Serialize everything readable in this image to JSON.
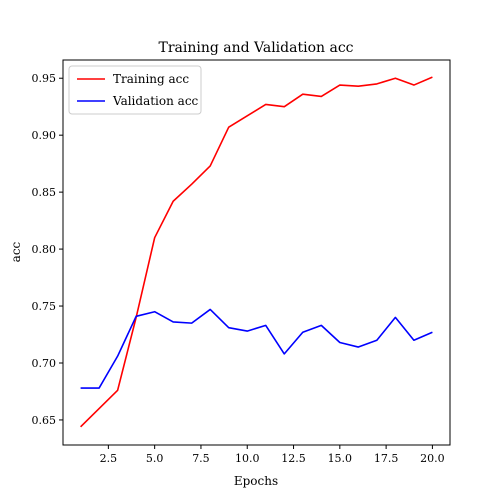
{
  "chart_data": {
    "type": "line",
    "title": "Training and Validation acc",
    "xlabel": "Epochs",
    "ylabel": "acc",
    "xlim": [
      0.05,
      20.95
    ],
    "ylim": [
      0.628,
      0.966
    ],
    "xticks": [
      2.5,
      5.0,
      7.5,
      10.0,
      12.5,
      15.0,
      17.5,
      20.0
    ],
    "xtick_labels": [
      "2.5",
      "5.0",
      "7.5",
      "10.0",
      "12.5",
      "15.0",
      "17.5",
      "20.0"
    ],
    "yticks": [
      0.65,
      0.7,
      0.75,
      0.8,
      0.85,
      0.9,
      0.95
    ],
    "ytick_labels": [
      "0.65",
      "0.70",
      "0.75",
      "0.80",
      "0.85",
      "0.90",
      "0.95"
    ],
    "grid": false,
    "legend_position": "top-left",
    "x": [
      1,
      2,
      3,
      4,
      5,
      6,
      7,
      8,
      9,
      10,
      11,
      12,
      13,
      14,
      15,
      16,
      17,
      18,
      19,
      20
    ],
    "series": [
      {
        "name": "Training acc",
        "color": "#ff0000",
        "values": [
          0.644,
          0.66,
          0.676,
          0.74,
          0.81,
          0.842,
          0.857,
          0.873,
          0.907,
          0.917,
          0.927,
          0.925,
          0.936,
          0.934,
          0.944,
          0.943,
          0.945,
          0.95,
          0.944,
          0.951
        ]
      },
      {
        "name": "Validation acc",
        "color": "#0000ff",
        "values": [
          0.678,
          0.678,
          0.706,
          0.741,
          0.745,
          0.736,
          0.735,
          0.747,
          0.731,
          0.728,
          0.733,
          0.708,
          0.727,
          0.733,
          0.718,
          0.714,
          0.72,
          0.74,
          0.72,
          0.727
        ]
      }
    ]
  }
}
